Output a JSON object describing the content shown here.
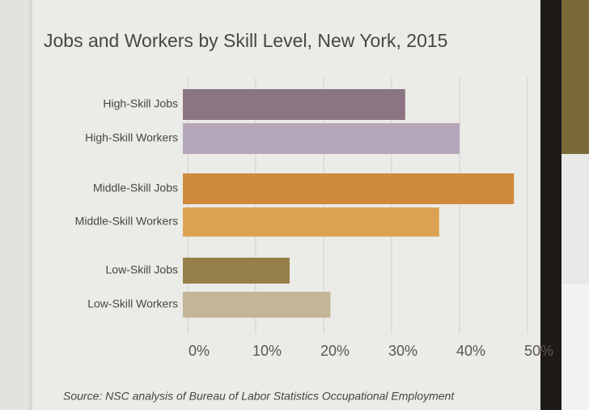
{
  "chart_data": {
    "type": "hbar",
    "title": "Jobs and Workers by Skill Level, New York, 2015",
    "categories": [
      "High-Skill Jobs",
      "High-Skill Workers",
      "Middle-Skill Jobs",
      "Middle-Skill Workers",
      "Low-Skill Jobs",
      "Low-Skill Workers"
    ],
    "values": [
      32,
      40,
      48,
      37,
      15,
      21
    ],
    "colors": [
      "#8c7582",
      "#b6a6ba",
      "#cf8a3c",
      "#dca253",
      "#968049",
      "#c2b697"
    ],
    "xlim": [
      0,
      50
    ],
    "xticks": [
      {
        "value": 0,
        "label": "0%"
      },
      {
        "value": 10,
        "label": "10%"
      },
      {
        "value": 20,
        "label": "20%"
      },
      {
        "value": 30,
        "label": "30%"
      },
      {
        "value": 40,
        "label": "40%"
      },
      {
        "value": 50,
        "label": "50%"
      }
    ],
    "grid": true,
    "source": "Source: NSC analysis of Bureau of Labor Statistics Occupational Employment"
  }
}
